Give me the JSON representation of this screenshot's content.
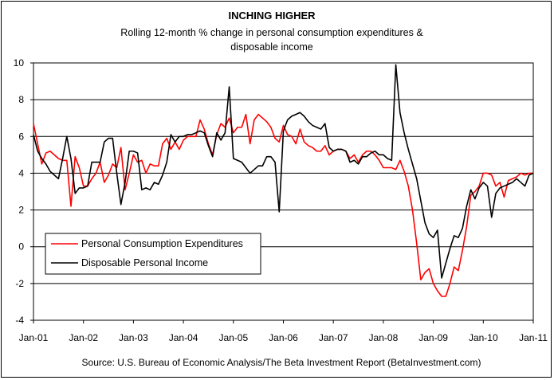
{
  "chart_data": {
    "type": "line",
    "title": "INCHING HIGHER",
    "subtitle_lines": [
      "Rolling 12-month % change in personal consumption expenditures &",
      "disposable income"
    ],
    "source": "Source: U.S. Bureau of Economic Analysis/The Beta Investment Report (BetaInvestment.com)",
    "x_tick_labels": [
      "Jan-01",
      "Jan-02",
      "Jan-03",
      "Jan-04",
      "Jan-05",
      "Jan-06",
      "Jan-07",
      "Jan-08",
      "Jan-09",
      "Jan-10",
      "Jan-11"
    ],
    "y_tick_labels": [
      "10",
      "8",
      "6",
      "4",
      "2",
      "0",
      "-2",
      "-4"
    ],
    "ylim": [
      -4,
      10
    ],
    "y_gridlines": [
      10,
      8,
      6,
      4,
      2,
      0,
      -2
    ],
    "x_range_months": [
      0,
      120
    ],
    "legend": {
      "placement": "lower-left",
      "entries": [
        "Personal Consumption Expenditures",
        "Disposable Personal Income"
      ]
    },
    "series": [
      {
        "name": "Personal Consumption Expenditures",
        "color": "#ff0000",
        "points": [
          [
            0,
            6.7
          ],
          [
            1,
            5.6
          ],
          [
            2,
            4.5
          ],
          [
            3,
            5.1
          ],
          [
            4,
            5.2
          ],
          [
            5,
            5.0
          ],
          [
            6,
            4.8
          ],
          [
            7,
            4.7
          ],
          [
            8,
            4.7
          ],
          [
            9,
            2.2
          ],
          [
            10,
            4.9
          ],
          [
            11,
            4.3
          ],
          [
            12,
            3.3
          ],
          [
            13,
            3.3
          ],
          [
            14,
            3.7
          ],
          [
            15,
            4.0
          ],
          [
            16,
            4.6
          ],
          [
            17,
            3.5
          ],
          [
            18,
            3.9
          ],
          [
            19,
            4.5
          ],
          [
            20,
            4.3
          ],
          [
            21,
            5.4
          ],
          [
            22,
            3.1
          ],
          [
            23,
            4.0
          ],
          [
            24,
            5.0
          ],
          [
            25,
            4.6
          ],
          [
            26,
            4.7
          ],
          [
            27,
            4.0
          ],
          [
            28,
            4.5
          ],
          [
            29,
            4.4
          ],
          [
            30,
            4.4
          ],
          [
            31,
            5.6
          ],
          [
            32,
            5.9
          ],
          [
            33,
            5.3
          ],
          [
            34,
            5.7
          ],
          [
            35,
            5.3
          ],
          [
            36,
            5.8
          ],
          [
            37,
            6.0
          ],
          [
            38,
            6.0
          ],
          [
            39,
            6.0
          ],
          [
            40,
            6.9
          ],
          [
            41,
            6.4
          ],
          [
            42,
            5.6
          ],
          [
            43,
            5.0
          ],
          [
            44,
            6.1
          ],
          [
            45,
            6.7
          ],
          [
            46,
            6.5
          ],
          [
            47,
            7.0
          ],
          [
            48,
            6.2
          ],
          [
            49,
            6.5
          ],
          [
            50,
            6.5
          ],
          [
            51,
            7.2
          ],
          [
            52,
            5.6
          ],
          [
            53,
            6.9
          ],
          [
            54,
            7.2
          ],
          [
            55,
            7.0
          ],
          [
            56,
            6.8
          ],
          [
            57,
            6.5
          ],
          [
            58,
            5.9
          ],
          [
            59,
            5.7
          ],
          [
            60,
            6.6
          ],
          [
            61,
            6.1
          ],
          [
            62,
            6.0
          ],
          [
            63,
            5.6
          ],
          [
            64,
            6.4
          ],
          [
            65,
            5.7
          ],
          [
            66,
            5.5
          ],
          [
            67,
            5.4
          ],
          [
            68,
            5.2
          ],
          [
            69,
            5.2
          ],
          [
            70,
            5.5
          ],
          [
            71,
            5.0
          ],
          [
            72,
            5.2
          ],
          [
            73,
            5.3
          ],
          [
            74,
            5.3
          ],
          [
            75,
            5.2
          ],
          [
            76,
            4.8
          ],
          [
            77,
            5.0
          ],
          [
            78,
            4.6
          ],
          [
            79,
            5.0
          ],
          [
            80,
            5.2
          ],
          [
            81,
            5.2
          ],
          [
            82,
            5.0
          ],
          [
            83,
            4.7
          ],
          [
            84,
            4.3
          ],
          [
            85,
            4.3
          ],
          [
            86,
            4.3
          ],
          [
            87,
            4.2
          ],
          [
            88,
            4.7
          ],
          [
            89,
            4.1
          ],
          [
            90,
            3.3
          ],
          [
            91,
            2.0
          ],
          [
            92,
            0.2
          ],
          [
            93,
            -1.8
          ],
          [
            94,
            -1.4
          ],
          [
            95,
            -1.2
          ],
          [
            96,
            -2.0
          ],
          [
            97,
            -2.4
          ],
          [
            98,
            -2.7
          ],
          [
            99,
            -2.7
          ],
          [
            100,
            -2.0
          ],
          [
            101,
            -1.1
          ],
          [
            102,
            -1.3
          ],
          [
            103,
            -0.2
          ],
          [
            104,
            1.1
          ],
          [
            105,
            2.8
          ],
          [
            106,
            3.0
          ],
          [
            107,
            3.3
          ],
          [
            108,
            4.0
          ],
          [
            109,
            4.0
          ],
          [
            110,
            3.9
          ],
          [
            111,
            3.3
          ],
          [
            112,
            3.5
          ],
          [
            113,
            2.7
          ],
          [
            114,
            3.6
          ],
          [
            115,
            3.7
          ],
          [
            116,
            3.8
          ],
          [
            117,
            4.0
          ],
          [
            118,
            3.9
          ],
          [
            119,
            4.0
          ],
          [
            120,
            4.0
          ]
        ]
      },
      {
        "name": "Disposable Personal Income",
        "color": "#000000",
        "points": [
          [
            0,
            6.1
          ],
          [
            1,
            5.2
          ],
          [
            2,
            4.8
          ],
          [
            3,
            4.5
          ],
          [
            4,
            4.1
          ],
          [
            5,
            3.9
          ],
          [
            6,
            3.7
          ],
          [
            7,
            4.8
          ],
          [
            8,
            6.0
          ],
          [
            9,
            4.8
          ],
          [
            10,
            2.9
          ],
          [
            11,
            3.2
          ],
          [
            12,
            3.2
          ],
          [
            13,
            3.3
          ],
          [
            14,
            4.6
          ],
          [
            15,
            4.6
          ],
          [
            16,
            4.6
          ],
          [
            17,
            5.7
          ],
          [
            18,
            5.9
          ],
          [
            19,
            5.9
          ],
          [
            20,
            4.0
          ],
          [
            21,
            2.3
          ],
          [
            22,
            3.5
          ],
          [
            23,
            5.2
          ],
          [
            24,
            5.2
          ],
          [
            25,
            5.1
          ],
          [
            26,
            3.1
          ],
          [
            27,
            3.2
          ],
          [
            28,
            3.1
          ],
          [
            29,
            3.5
          ],
          [
            30,
            3.4
          ],
          [
            31,
            3.9
          ],
          [
            32,
            4.6
          ],
          [
            33,
            6.1
          ],
          [
            34,
            5.7
          ],
          [
            35,
            6.0
          ],
          [
            36,
            6.0
          ],
          [
            37,
            6.1
          ],
          [
            38,
            6.1
          ],
          [
            39,
            6.2
          ],
          [
            40,
            6.3
          ],
          [
            41,
            6.2
          ],
          [
            42,
            5.5
          ],
          [
            43,
            4.9
          ],
          [
            44,
            6.2
          ],
          [
            45,
            5.8
          ],
          [
            46,
            6.2
          ],
          [
            47,
            8.7
          ],
          [
            48,
            4.8
          ],
          [
            49,
            4.7
          ],
          [
            50,
            4.6
          ],
          [
            51,
            4.3
          ],
          [
            52,
            4.0
          ],
          [
            53,
            4.2
          ],
          [
            54,
            4.4
          ],
          [
            55,
            4.4
          ],
          [
            56,
            4.9
          ],
          [
            57,
            4.9
          ],
          [
            58,
            4.6
          ],
          [
            59,
            1.9
          ],
          [
            60,
            6.3
          ],
          [
            61,
            6.9
          ],
          [
            62,
            7.1
          ],
          [
            63,
            7.2
          ],
          [
            64,
            7.3
          ],
          [
            65,
            7.1
          ],
          [
            66,
            6.8
          ],
          [
            67,
            6.6
          ],
          [
            68,
            6.5
          ],
          [
            69,
            6.4
          ],
          [
            70,
            6.7
          ],
          [
            71,
            5.4
          ],
          [
            72,
            5.2
          ],
          [
            73,
            5.3
          ],
          [
            74,
            5.3
          ],
          [
            75,
            5.2
          ],
          [
            76,
            4.6
          ],
          [
            77,
            4.7
          ],
          [
            78,
            4.5
          ],
          [
            79,
            4.9
          ],
          [
            80,
            4.9
          ],
          [
            81,
            5.1
          ],
          [
            82,
            5.2
          ],
          [
            83,
            5.0
          ],
          [
            84,
            5.0
          ],
          [
            85,
            4.8
          ],
          [
            86,
            4.7
          ],
          [
            87,
            9.9
          ],
          [
            88,
            7.3
          ],
          [
            89,
            6.2
          ],
          [
            90,
            5.3
          ],
          [
            91,
            4.5
          ],
          [
            92,
            3.7
          ],
          [
            93,
            2.5
          ],
          [
            94,
            1.3
          ],
          [
            95,
            0.7
          ],
          [
            96,
            0.5
          ],
          [
            97,
            0.9
          ],
          [
            98,
            -1.7
          ],
          [
            99,
            -0.9
          ],
          [
            100,
            -0.1
          ],
          [
            101,
            0.6
          ],
          [
            102,
            0.5
          ],
          [
            103,
            1.0
          ],
          [
            104,
            2.2
          ],
          [
            105,
            3.1
          ],
          [
            106,
            2.6
          ],
          [
            107,
            3.2
          ],
          [
            108,
            3.5
          ],
          [
            109,
            3.3
          ],
          [
            110,
            1.6
          ],
          [
            111,
            2.9
          ],
          [
            112,
            3.2
          ],
          [
            113,
            3.3
          ],
          [
            114,
            3.4
          ],
          [
            115,
            3.5
          ],
          [
            116,
            3.7
          ],
          [
            117,
            3.5
          ],
          [
            118,
            3.3
          ],
          [
            119,
            3.9
          ],
          [
            120,
            4.0
          ]
        ]
      }
    ]
  }
}
